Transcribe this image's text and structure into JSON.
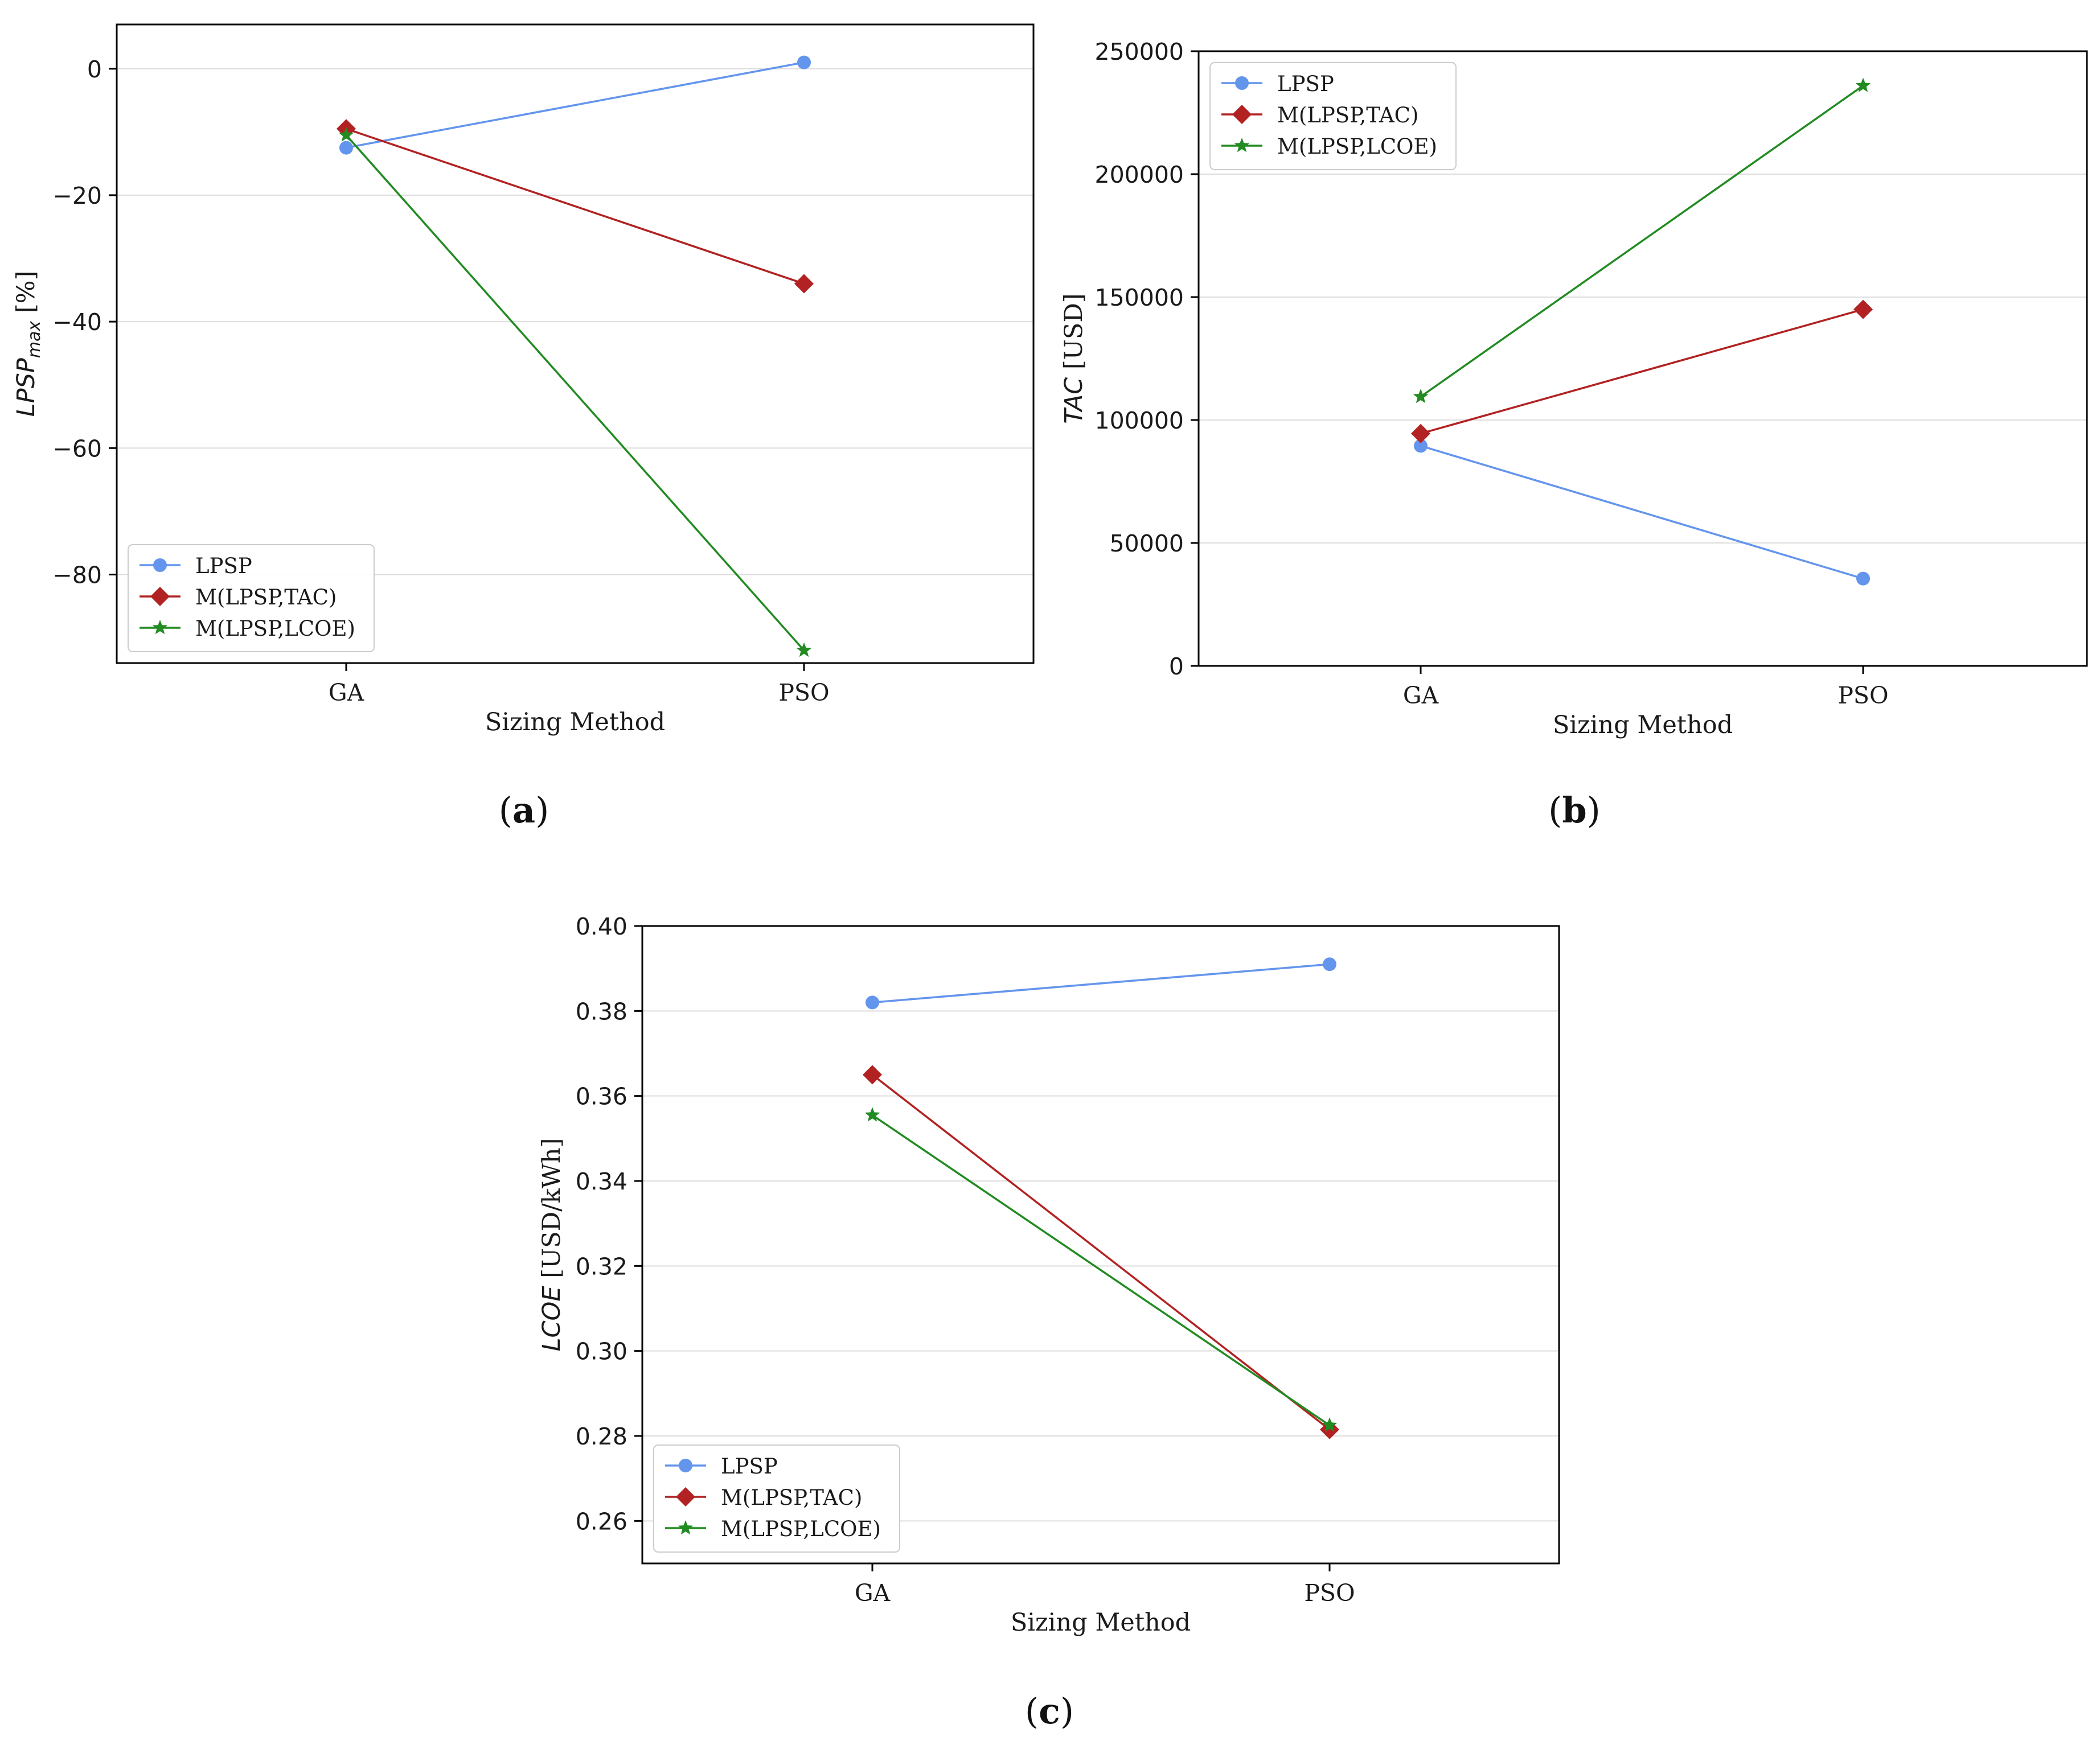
{
  "chart_data": [
    {
      "type": "line",
      "panel_label": "a",
      "xlabel": "Sizing Method",
      "ylabel_main": "LPSP",
      "ylabel_sub": "max",
      "ylabel_unit": " [%]",
      "categories": [
        "GA",
        "PSO"
      ],
      "ylim": [
        -94,
        7
      ],
      "yticks": [
        0,
        -20,
        -40,
        -60,
        -80
      ],
      "ytick_labels": [
        "0",
        "−20",
        "−40",
        "−60",
        "−80"
      ],
      "grid": true,
      "legend_position": "lower-left",
      "series": [
        {
          "name": "LPSP",
          "color": "#6495ED",
          "marker": "circle",
          "values": [
            -12.5,
            1
          ]
        },
        {
          "name": "M(LPSP,TAC)",
          "color": "#B22222",
          "marker": "diamond",
          "values": [
            -9.5,
            -34
          ]
        },
        {
          "name": "M(LPSP,LCOE)",
          "color": "#228B22",
          "marker": "star",
          "values": [
            -10.5,
            -92
          ]
        }
      ]
    },
    {
      "type": "line",
      "panel_label": "b",
      "xlabel": "Sizing Method",
      "ylabel_main": "TAC",
      "ylabel_sub": "",
      "ylabel_unit": " [USD]",
      "categories": [
        "GA",
        "PSO"
      ],
      "ylim": [
        0,
        250000
      ],
      "yticks": [
        0,
        50000,
        100000,
        150000,
        200000,
        250000
      ],
      "ytick_labels": [
        "0",
        "50000",
        "100000",
        "150000",
        "200000",
        "250000"
      ],
      "grid": true,
      "legend_position": "upper-left",
      "series": [
        {
          "name": "LPSP",
          "color": "#6495ED",
          "marker": "circle",
          "values": [
            89500,
            35500
          ]
        },
        {
          "name": "M(LPSP,TAC)",
          "color": "#B22222",
          "marker": "diamond",
          "values": [
            94500,
            145000
          ]
        },
        {
          "name": "M(LPSP,LCOE)",
          "color": "#228B22",
          "marker": "star",
          "values": [
            109500,
            236000
          ]
        }
      ]
    },
    {
      "type": "line",
      "panel_label": "c",
      "xlabel": "Sizing Method",
      "ylabel_main": "LCOE",
      "ylabel_sub": "",
      "ylabel_unit": " [USD/kWh]",
      "categories": [
        "GA",
        "PSO"
      ],
      "ylim": [
        0.25,
        0.4
      ],
      "yticks": [
        0.26,
        0.28,
        0.3,
        0.32,
        0.34,
        0.36,
        0.38,
        0.4
      ],
      "ytick_labels": [
        "0.26",
        "0.28",
        "0.30",
        "0.32",
        "0.34",
        "0.36",
        "0.38",
        "0.40"
      ],
      "grid": true,
      "legend_position": "lower-left",
      "series": [
        {
          "name": "LPSP",
          "color": "#6495ED",
          "marker": "circle",
          "values": [
            0.382,
            0.391
          ]
        },
        {
          "name": "M(LPSP,TAC)",
          "color": "#B22222",
          "marker": "diamond",
          "values": [
            0.365,
            0.2815
          ]
        },
        {
          "name": "M(LPSP,LCOE)",
          "color": "#228B22",
          "marker": "star",
          "values": [
            0.3555,
            0.2825
          ]
        }
      ]
    }
  ]
}
